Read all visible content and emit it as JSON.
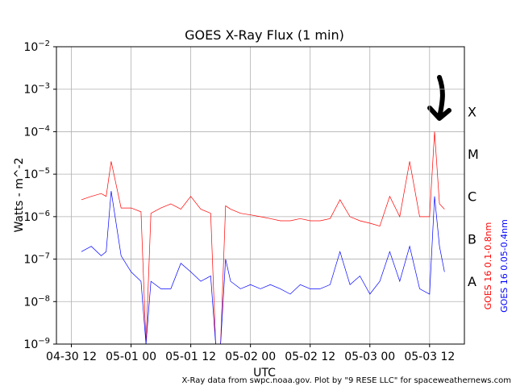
{
  "chart_data": {
    "type": "line",
    "title": "GOES X-Ray Flux (1 min)",
    "x_label": "UTC",
    "y_label": "Watts - m^-2",
    "footer": "X-Ray data from swpc.noaa.gov. Plot by \"9 RESE LLC\" for spaceweathernews.com",
    "log_y": true,
    "grid": true,
    "xlim": [
      "04-30 09",
      "05-03 19"
    ],
    "xticks": [
      "04-30 12",
      "05-01 00",
      "05-01 12",
      "05-02 00",
      "05-02 12",
      "05-03 00",
      "05-03 12"
    ],
    "ylim": [
      1e-09,
      0.01
    ],
    "yticks": [
      {
        "value": 1e-09,
        "label": "10^-9"
      },
      {
        "value": 1e-08,
        "label": "10^-8"
      },
      {
        "value": 1e-07,
        "label": "10^-7"
      },
      {
        "value": 1e-06,
        "label": "10^-6"
      },
      {
        "value": 1e-05,
        "label": "10^-5"
      },
      {
        "value": 0.0001,
        "label": "10^-4"
      },
      {
        "value": 0.001,
        "label": "10^-3"
      },
      {
        "value": 0.01,
        "label": "10^-2"
      }
    ],
    "class_labels": [
      {
        "label": "X",
        "value": 0.0003
      },
      {
        "label": "M",
        "value": 3e-05
      },
      {
        "label": "C",
        "value": 3e-06
      },
      {
        "label": "B",
        "value": 3e-07
      },
      {
        "label": "A",
        "value": 3e-08
      }
    ],
    "x": [
      "04-30 14",
      "04-30 16",
      "04-30 18",
      "04-30 19",
      "04-30 20",
      "04-30 22",
      "05-01 00",
      "05-01 02",
      "05-01 03",
      "05-01 04",
      "05-01 06",
      "05-01 08",
      "05-01 10",
      "05-01 12",
      "05-01 14",
      "05-01 16",
      "05-01 17",
      "05-01 18",
      "05-01 19",
      "05-01 20",
      "05-01 22",
      "05-02 00",
      "05-02 02",
      "05-02 04",
      "05-02 06",
      "05-02 08",
      "05-02 10",
      "05-02 12",
      "05-02 14",
      "05-02 16",
      "05-02 18",
      "05-02 20",
      "05-02 22",
      "05-03 00",
      "05-03 02",
      "05-03 04",
      "05-03 06",
      "05-03 08",
      "05-03 10",
      "05-03 12",
      "05-03 13",
      "05-03 14",
      "05-03 15"
    ],
    "series": [
      {
        "name": "GOES 16 0.1-0.8nm",
        "color": "#ff0000",
        "values": [
          2.5e-06,
          3e-06,
          3.5e-06,
          3e-06,
          2e-05,
          1.6e-06,
          1.6e-06,
          1.3e-06,
          1e-09,
          1.2e-06,
          1.6e-06,
          2e-06,
          1.5e-06,
          3e-06,
          1.5e-06,
          1.2e-06,
          1e-09,
          1e-09,
          1.8e-06,
          1.5e-06,
          1.2e-06,
          1.1e-06,
          1e-06,
          9e-07,
          8e-07,
          8e-07,
          9e-07,
          8e-07,
          8e-07,
          9e-07,
          2.5e-06,
          1e-06,
          8e-07,
          7e-07,
          6e-07,
          3e-06,
          1e-06,
          2e-05,
          1e-06,
          1e-06,
          0.0001,
          2e-06,
          1.5e-06
        ]
      },
      {
        "name": "GOES 16 0.05-0.4nm",
        "color": "#0000ff",
        "values": [
          1.5e-07,
          2e-07,
          1.2e-07,
          1.5e-07,
          4e-06,
          1.2e-07,
          5e-08,
          3e-08,
          1e-09,
          3e-08,
          2e-08,
          2e-08,
          8e-08,
          5e-08,
          3e-08,
          4e-08,
          1e-09,
          1e-09,
          1e-07,
          3e-08,
          2e-08,
          2.5e-08,
          2e-08,
          2.5e-08,
          2e-08,
          1.5e-08,
          2.5e-08,
          2e-08,
          2e-08,
          2.5e-08,
          1.5e-07,
          2.5e-08,
          4e-08,
          1.5e-08,
          3e-08,
          1.5e-07,
          3e-08,
          2e-07,
          2e-08,
          1.5e-08,
          3e-06,
          2e-07,
          5e-08
        ]
      }
    ]
  }
}
